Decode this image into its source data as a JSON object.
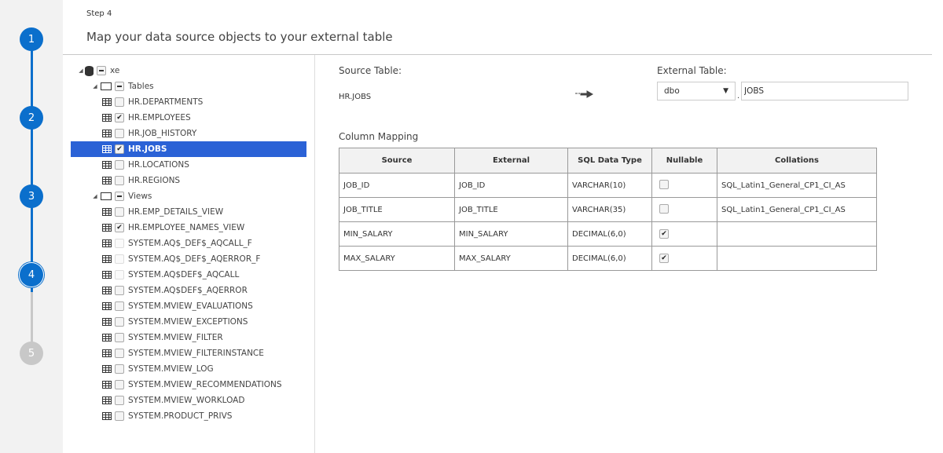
{
  "colors": {
    "accent": "#0b6fcc",
    "inactive": "#c8c8c8",
    "selection": "#2b62d6"
  },
  "steps": [
    {
      "num": "1",
      "state": "done"
    },
    {
      "num": "2",
      "state": "done"
    },
    {
      "num": "3",
      "state": "done"
    },
    {
      "num": "4",
      "state": "current"
    },
    {
      "num": "5",
      "state": "pending"
    }
  ],
  "header": {
    "step": "Step 4",
    "title": "Map your data source objects to your external table"
  },
  "tree": [
    {
      "level": 0,
      "type": "database",
      "label": "xe",
      "check": "partial",
      "expanded": true
    },
    {
      "level": 1,
      "type": "folder",
      "label": "Tables",
      "check": "partial",
      "expanded": true
    },
    {
      "level": 2,
      "type": "table",
      "label": "HR.DEPARTMENTS",
      "check": "unchecked"
    },
    {
      "level": 2,
      "type": "table",
      "label": "HR.EMPLOYEES",
      "check": "checked"
    },
    {
      "level": 2,
      "type": "table",
      "label": "HR.JOB_HISTORY",
      "check": "unchecked"
    },
    {
      "level": 2,
      "type": "table",
      "label": "HR.JOBS",
      "check": "checked",
      "selected": true
    },
    {
      "level": 2,
      "type": "table",
      "label": "HR.LOCATIONS",
      "check": "unchecked"
    },
    {
      "level": 2,
      "type": "table",
      "label": "HR.REGIONS",
      "check": "unchecked"
    },
    {
      "level": 1,
      "type": "folder",
      "label": "Views",
      "check": "partial",
      "expanded": true
    },
    {
      "level": 2,
      "type": "table",
      "label": "HR.EMP_DETAILS_VIEW",
      "check": "unchecked"
    },
    {
      "level": 2,
      "type": "table",
      "label": "HR.EMPLOYEE_NAMES_VIEW",
      "check": "checked"
    },
    {
      "level": 2,
      "type": "table",
      "label": "SYSTEM.AQ$_DEF$_AQCALL_F",
      "check": "disabled"
    },
    {
      "level": 2,
      "type": "table",
      "label": "SYSTEM.AQ$_DEF$_AQERROR_F",
      "check": "disabled"
    },
    {
      "level": 2,
      "type": "table",
      "label": "SYSTEM.AQ$DEF$_AQCALL",
      "check": "disabled"
    },
    {
      "level": 2,
      "type": "table",
      "label": "SYSTEM.AQ$DEF$_AQERROR",
      "check": "unchecked"
    },
    {
      "level": 2,
      "type": "table",
      "label": "SYSTEM.MVIEW_EVALUATIONS",
      "check": "unchecked"
    },
    {
      "level": 2,
      "type": "table",
      "label": "SYSTEM.MVIEW_EXCEPTIONS",
      "check": "unchecked"
    },
    {
      "level": 2,
      "type": "table",
      "label": "SYSTEM.MVIEW_FILTER",
      "check": "unchecked"
    },
    {
      "level": 2,
      "type": "table",
      "label": "SYSTEM.MVIEW_FILTERINSTANCE",
      "check": "unchecked"
    },
    {
      "level": 2,
      "type": "table",
      "label": "SYSTEM.MVIEW_LOG",
      "check": "unchecked"
    },
    {
      "level": 2,
      "type": "table",
      "label": "SYSTEM.MVIEW_RECOMMENDATIONS",
      "check": "unchecked"
    },
    {
      "level": 2,
      "type": "table",
      "label": "SYSTEM.MVIEW_WORKLOAD",
      "check": "unchecked"
    },
    {
      "level": 2,
      "type": "table",
      "label": "SYSTEM.PRODUCT_PRIVS",
      "check": "unchecked"
    }
  ],
  "mapping": {
    "source_label": "Source Table:",
    "source_value": "HR.JOBS",
    "arrow_icon": "arrow-right-icon",
    "external_label": "External Table:",
    "schema": "dbo",
    "dot": ".",
    "table_name": "JOBS",
    "column_mapping_title": "Column Mapping",
    "columns": [
      "Source",
      "External",
      "SQL Data Type",
      "Nullable",
      "Collations"
    ],
    "rows": [
      {
        "source": "JOB_ID",
        "external": "JOB_ID",
        "type": "VARCHAR(10)",
        "nullable": false,
        "collation": "SQL_Latin1_General_CP1_CI_AS"
      },
      {
        "source": "JOB_TITLE",
        "external": "JOB_TITLE",
        "type": "VARCHAR(35)",
        "nullable": false,
        "collation": "SQL_Latin1_General_CP1_CI_AS"
      },
      {
        "source": "MIN_SALARY",
        "external": "MIN_SALARY",
        "type": "DECIMAL(6,0)",
        "nullable": true,
        "collation": ""
      },
      {
        "source": "MAX_SALARY",
        "external": "MAX_SALARY",
        "type": "DECIMAL(6,0)",
        "nullable": true,
        "collation": ""
      }
    ]
  }
}
